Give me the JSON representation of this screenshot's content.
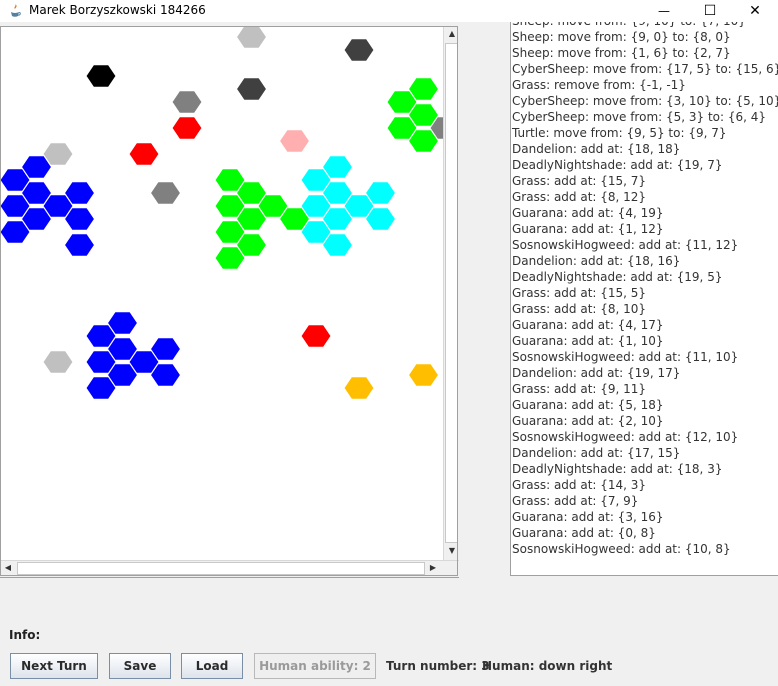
{
  "window": {
    "title": "Marek Borzyszkowski 184266",
    "minimize_glyph": "—",
    "maximize_glyph": "☐",
    "close_glyph": "✕"
  },
  "board": {
    "cells": [
      {
        "col": 5,
        "row": 1,
        "color": "#c0c0c0"
      },
      {
        "col": 8,
        "row": 2,
        "color": "#404040"
      },
      {
        "col": 2,
        "row": 4,
        "color": "#000000"
      },
      {
        "col": 5,
        "row": 5,
        "color": "#404040"
      },
      {
        "col": 9,
        "row": 5,
        "color": "#00ff00"
      },
      {
        "col": 11,
        "row": 5,
        "color": "#ff00ff"
      },
      {
        "col": 4,
        "row": 6,
        "color": "#808080"
      },
      {
        "col": 9,
        "row": 6,
        "color": "#00ff00"
      },
      {
        "col": 11,
        "row": 6,
        "color": "#ff00ff"
      },
      {
        "col": 9,
        "row": 7,
        "color": "#00ff00"
      },
      {
        "col": 10,
        "row": 7,
        "color": "#00ff00"
      },
      {
        "col": 11,
        "row": 7,
        "color": "#ff00ff"
      },
      {
        "col": 12,
        "row": 7,
        "color": "#ff00ff"
      },
      {
        "col": 4,
        "row": 8,
        "color": "#ff0000"
      },
      {
        "col": 9,
        "row": 8,
        "color": "#00ff00"
      },
      {
        "col": 10,
        "row": 8,
        "color": "#808080"
      },
      {
        "col": 11,
        "row": 8,
        "color": "#ff00ff"
      },
      {
        "col": 12,
        "row": 8,
        "color": "#ff00ff"
      },
      {
        "col": 9,
        "row": 9,
        "color": "#00ff00"
      },
      {
        "col": 10,
        "row": 9,
        "color": "#00ff00"
      },
      {
        "col": 11,
        "row": 9,
        "color": "#c0c0c0"
      },
      {
        "col": 12,
        "row": 9,
        "color": "#ff00ff"
      },
      {
        "col": 6,
        "row": 9,
        "color": "#ffafaf"
      },
      {
        "col": 1,
        "row": 10,
        "color": "#c0c0c0"
      },
      {
        "col": 3,
        "row": 10,
        "color": "#ff0000"
      },
      {
        "col": 0,
        "row": 11,
        "color": "#0000ff"
      },
      {
        "col": 7,
        "row": 11,
        "color": "#00ffff"
      },
      {
        "col": 5,
        "row": 12,
        "color": "#00ff00"
      },
      {
        "col": 0,
        "row": 12,
        "color": "#0000ff"
      },
      {
        "col": 7,
        "row": 12,
        "color": "#00ffff"
      },
      {
        "col": 0,
        "row": 13,
        "color": "#0000ff"
      },
      {
        "col": 1,
        "row": 13,
        "color": "#0000ff"
      },
      {
        "col": 3,
        "row": 13,
        "color": "#808080"
      },
      {
        "col": 5,
        "row": 13,
        "color": "#00ff00"
      },
      {
        "col": 7,
        "row": 13,
        "color": "#00ffff"
      },
      {
        "col": 8,
        "row": 13,
        "color": "#00ffff"
      },
      {
        "col": 0,
        "row": 14,
        "color": "#0000ff"
      },
      {
        "col": 1,
        "row": 14,
        "color": "#0000ff"
      },
      {
        "col": 5,
        "row": 14,
        "color": "#00ff00"
      },
      {
        "col": 6,
        "row": 14,
        "color": "#00ff00"
      },
      {
        "col": 7,
        "row": 14,
        "color": "#00ffff"
      },
      {
        "col": 8,
        "row": 14,
        "color": "#00ffff"
      },
      {
        "col": 0,
        "row": 15,
        "color": "#0000ff"
      },
      {
        "col": 1,
        "row": 15,
        "color": "#0000ff"
      },
      {
        "col": 5,
        "row": 15,
        "color": "#00ff00"
      },
      {
        "col": 6,
        "row": 15,
        "color": "#00ff00"
      },
      {
        "col": 7,
        "row": 15,
        "color": "#00ffff"
      },
      {
        "col": 8,
        "row": 15,
        "color": "#00ffff"
      },
      {
        "col": 0,
        "row": 16,
        "color": "#0000ff"
      },
      {
        "col": 5,
        "row": 16,
        "color": "#00ff00"
      },
      {
        "col": 7,
        "row": 16,
        "color": "#00ffff"
      },
      {
        "col": 1,
        "row": 17,
        "color": "#0000ff"
      },
      {
        "col": 5,
        "row": 17,
        "color": "#00ff00"
      },
      {
        "col": 7,
        "row": 17,
        "color": "#00ffff"
      },
      {
        "col": 5,
        "row": 18,
        "color": "#00ff00"
      },
      {
        "col": 11,
        "row": 21,
        "color": "#ffff00"
      },
      {
        "col": 11,
        "row": 22,
        "color": "#ffff00"
      },
      {
        "col": 2,
        "row": 23,
        "color": "#0000ff"
      },
      {
        "col": 11,
        "row": 23,
        "color": "#ffff00"
      },
      {
        "col": 12,
        "row": 23,
        "color": "#ffff00"
      },
      {
        "col": 2,
        "row": 24,
        "color": "#0000ff"
      },
      {
        "col": 7,
        "row": 24,
        "color": "#ff0000"
      },
      {
        "col": 11,
        "row": 24,
        "color": "#ffff00"
      },
      {
        "col": 12,
        "row": 24,
        "color": "#ffff00"
      },
      {
        "col": 2,
        "row": 25,
        "color": "#0000ff"
      },
      {
        "col": 3,
        "row": 25,
        "color": "#0000ff"
      },
      {
        "col": 11,
        "row": 25,
        "color": "#ffff00"
      },
      {
        "col": 12,
        "row": 25,
        "color": "#ffff00"
      },
      {
        "col": 1,
        "row": 26,
        "color": "#c0c0c0"
      },
      {
        "col": 2,
        "row": 26,
        "color": "#0000ff"
      },
      {
        "col": 3,
        "row": 26,
        "color": "#0000ff"
      },
      {
        "col": 11,
        "row": 26,
        "color": "#ffff00"
      },
      {
        "col": 2,
        "row": 27,
        "color": "#0000ff"
      },
      {
        "col": 3,
        "row": 27,
        "color": "#0000ff"
      },
      {
        "col": 9,
        "row": 27,
        "color": "#ffbf00"
      },
      {
        "col": 11,
        "row": 27,
        "color": "#ffff00"
      },
      {
        "col": 2,
        "row": 28,
        "color": "#0000ff"
      },
      {
        "col": 8,
        "row": 28,
        "color": "#ffbf00"
      }
    ]
  },
  "log": {
    "lines": [
      "Sheep: move from: {9, 10} to: {7, 10}",
      "Sheep: move from: {9, 0} to: {8, 0}",
      "Sheep: move from: {1, 6} to: {2, 7}",
      "CyberSheep: move from: {17, 5} to: {15, 6}",
      "Grass: remove from: {-1, -1}",
      "CyberSheep: move from: {3, 10} to: {5, 10}",
      "CyberSheep: move from: {5, 3} to: {6, 4}",
      "Turtle: move from: {9, 5} to: {9, 7}",
      "Dandelion: add at: {18, 18}",
      "DeadlyNightshade: add at: {19, 7}",
      "Grass: add at: {15, 7}",
      "Grass: add at: {8, 12}",
      "Guarana: add at: {4, 19}",
      "Guarana: add at: {1, 12}",
      "SosnowskiHogweed: add at: {11, 12}",
      "Dandelion: add at: {18, 16}",
      "DeadlyNightshade: add at: {19, 5}",
      "Grass: add at: {15, 5}",
      "Grass: add at: {8, 10}",
      "Guarana: add at: {4, 17}",
      "Guarana: add at: {1, 10}",
      "SosnowskiHogweed: add at: {11, 10}",
      "Dandelion: add at: {19, 17}",
      "Grass: add at: {9, 11}",
      "Guarana: add at: {5, 18}",
      "Guarana: add at: {2, 10}",
      "SosnowskiHogweed: add at: {12, 10}",
      "Dandelion: add at: {17, 15}",
      "DeadlyNightshade: add at: {18, 3}",
      "Grass: add at: {14, 3}",
      "Grass: add at: {7, 9}",
      "Guarana: add at: {3, 16}",
      "Guarana: add at: {0, 8}",
      "SosnowskiHogweed: add at: {10, 8}"
    ]
  },
  "info": {
    "label": "Info:"
  },
  "controls": {
    "next_turn": "Next Turn",
    "save": "Save",
    "load": "Load",
    "human_ability": "Human ability: 2",
    "turn_number": "Turn number: 3",
    "human_direction": "Human: down right"
  }
}
